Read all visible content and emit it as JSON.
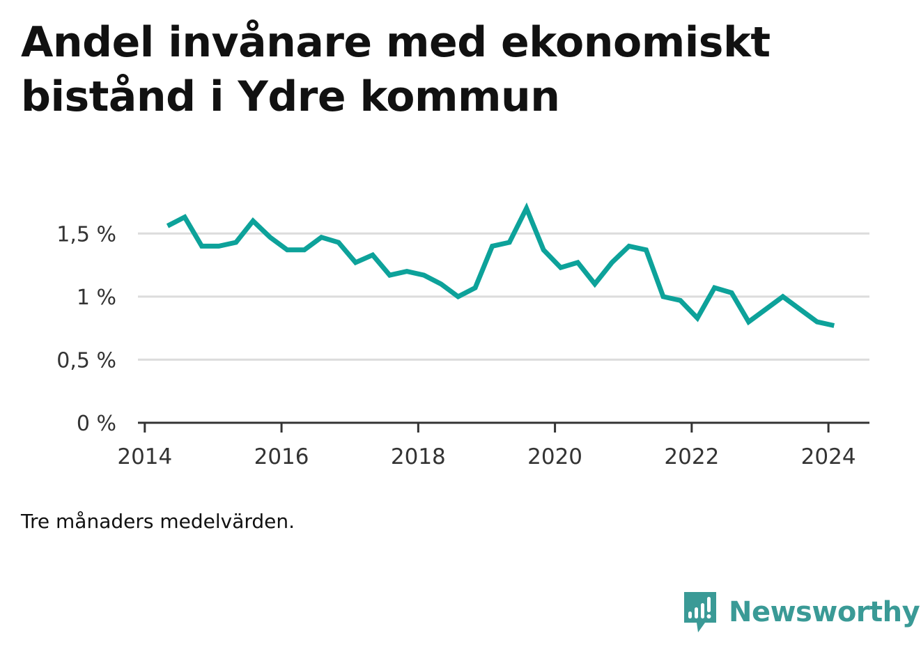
{
  "title_lines": [
    "Andel invånare med ekonomiskt",
    "bistånd i Ydre kommun"
  ],
  "note": "Tre månaders medelvärden.",
  "brand": {
    "name": "Newsworthy",
    "color": "#3a9a96"
  },
  "chart_data": {
    "type": "line",
    "title": "Andel invånare med ekonomiskt bistånd i Ydre kommun",
    "subtitle": "",
    "xlabel": "",
    "ylabel": "",
    "x_ticks": [
      2014,
      2016,
      2018,
      2020,
      2022,
      2024
    ],
    "y_ticks": [
      {
        "value": 0,
        "label": "0 %"
      },
      {
        "value": 0.5,
        "label": "0,5 %"
      },
      {
        "value": 1,
        "label": "1 %"
      },
      {
        "value": 1.5,
        "label": "1,5 %"
      }
    ],
    "xlim": [
      2013.9,
      2024.6
    ],
    "ylim": [
      0,
      1.75
    ],
    "grid": true,
    "line_color": "#0da29a",
    "grid_color": "#dcdcdc",
    "axis_color": "#333333",
    "series": [
      {
        "name": "",
        "x": [
          "2014-05",
          "2014-08",
          "2014-11",
          "2015-02",
          "2015-05",
          "2015-08",
          "2015-11",
          "2016-02",
          "2016-05",
          "2016-08",
          "2016-11",
          "2017-02",
          "2017-05",
          "2017-08",
          "2017-11",
          "2018-02",
          "2018-05",
          "2018-08",
          "2018-11",
          "2019-02",
          "2019-05",
          "2019-08",
          "2019-11",
          "2020-02",
          "2020-05",
          "2020-08",
          "2020-11",
          "2021-02",
          "2021-05",
          "2021-08",
          "2021-11",
          "2022-02",
          "2022-05",
          "2022-08",
          "2022-11",
          "2023-02",
          "2023-05",
          "2023-08",
          "2023-11",
          "2024-02"
        ],
        "values": [
          1.56,
          1.63,
          1.4,
          1.4,
          1.43,
          1.6,
          1.47,
          1.37,
          1.37,
          1.47,
          1.43,
          1.27,
          1.33,
          1.17,
          1.2,
          1.17,
          1.1,
          1.0,
          1.07,
          1.4,
          1.43,
          1.7,
          1.37,
          1.23,
          1.27,
          1.1,
          1.27,
          1.4,
          1.37,
          1.0,
          0.97,
          0.83,
          1.07,
          1.03,
          0.8,
          0.9,
          1.0,
          0.9,
          0.8,
          0.77
        ]
      }
    ]
  }
}
